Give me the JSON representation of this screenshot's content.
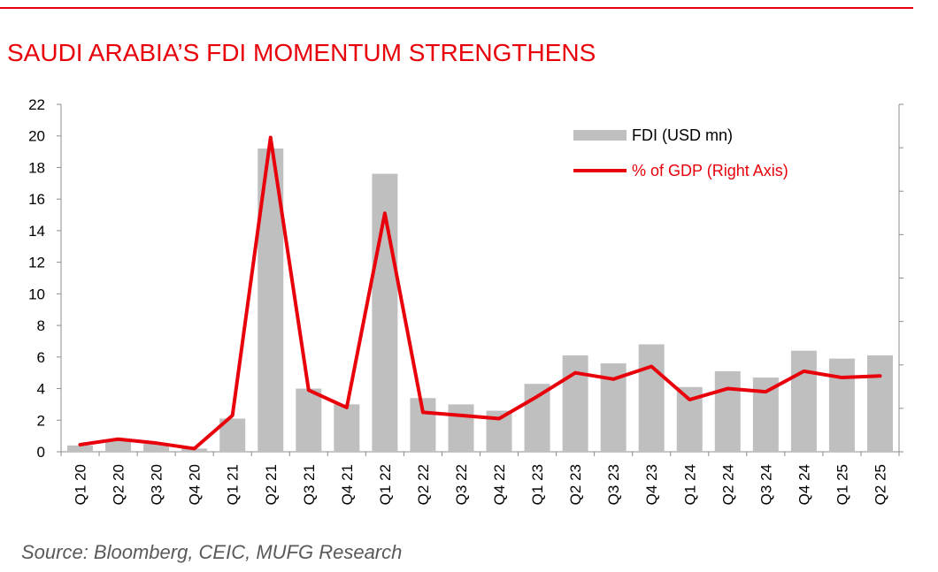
{
  "title": "SAUDI ARABIA’S FDI MOMENTUM STRENGTHENS",
  "source": "Source: Bloomberg, CEIC,  MUFG Research",
  "colors": {
    "accent": "#e8000b",
    "bar": "#bfbfbf",
    "axis": "#8c8c8c",
    "text": "#000000"
  },
  "chart_data": {
    "type": "bar",
    "title": "SAUDI ARABIA’S FDI MOMENTUM STRENGTHENS",
    "categories": [
      "Q1 20",
      "Q2 20",
      "Q3 20",
      "Q4 20",
      "Q1 21",
      "Q2 21",
      "Q3 21",
      "Q4 21",
      "Q1 22",
      "Q2 22",
      "Q3 22",
      "Q4 22",
      "Q1 23",
      "Q2 23",
      "Q3 23",
      "Q4 23",
      "Q1 24",
      "Q2 24",
      "Q3 24",
      "Q4 24",
      "Q1 25",
      "Q2 25"
    ],
    "series": [
      {
        "name": "FDI (USD mn)",
        "type": "bar",
        "axis": "left",
        "values": [
          0.4,
          0.7,
          0.5,
          0.2,
          2.1,
          19.2,
          4.0,
          3.0,
          17.6,
          3.4,
          3.0,
          2.6,
          4.3,
          6.1,
          5.6,
          6.8,
          4.1,
          5.1,
          4.7,
          6.4,
          5.9,
          6.1
        ]
      },
      {
        "name": "% of GDP (Right Axis)",
        "type": "line",
        "axis": "right",
        "values": [
          0.45,
          0.8,
          0.55,
          0.2,
          2.3,
          19.9,
          3.9,
          2.8,
          15.1,
          2.5,
          2.3,
          2.1,
          3.5,
          5.0,
          4.6,
          5.4,
          3.3,
          4.0,
          3.8,
          5.1,
          4.7,
          4.8
        ]
      }
    ],
    "y_left": {
      "ylim": [
        0,
        22
      ],
      "ticks": [
        0,
        2,
        4,
        6,
        8,
        10,
        12,
        14,
        16,
        18,
        20,
        22
      ]
    },
    "y_right": {
      "tick_count": 9,
      "labels_visible": false
    },
    "legend": {
      "position": "top-right",
      "entries": [
        "FDI (USD mn)",
        "% of GDP (Right Axis)"
      ]
    },
    "xlabel": "",
    "ylabel": ""
  }
}
